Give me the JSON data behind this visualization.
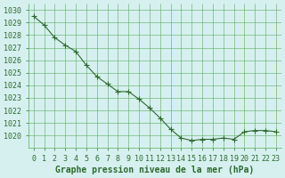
{
  "x": [
    0,
    1,
    2,
    3,
    4,
    5,
    6,
    7,
    8,
    9,
    10,
    11,
    12,
    13,
    14,
    15,
    16,
    17,
    18,
    19,
    20,
    21,
    22,
    23
  ],
  "y": [
    1029.5,
    1028.8,
    1027.8,
    1027.2,
    1026.7,
    1025.6,
    1024.7,
    1024.1,
    1023.5,
    1023.5,
    1022.9,
    1022.2,
    1021.4,
    1020.5,
    1019.8,
    1019.6,
    1019.7,
    1019.7,
    1019.8,
    1019.7,
    1020.3,
    1020.4,
    1020.4,
    1020.3
  ],
  "xlim": [
    -0.5,
    23.5
  ],
  "ylim": [
    1019.0,
    1030.5
  ],
  "yticks": [
    1020,
    1021,
    1022,
    1023,
    1024,
    1025,
    1026,
    1027,
    1028,
    1029,
    1030
  ],
  "xticks": [
    0,
    1,
    2,
    3,
    4,
    5,
    6,
    7,
    8,
    9,
    10,
    11,
    12,
    13,
    14,
    15,
    16,
    17,
    18,
    19,
    20,
    21,
    22,
    23
  ],
  "xlabel": "Graphe pression niveau de la mer (hPa)",
  "line_color": "#2d6a2d",
  "marker": "+",
  "bg_color": "#d6f0f0",
  "grid_color": "#5aab5a",
  "tick_color": "#2d6a2d",
  "label_color": "#2d6a2d",
  "xlabel_fontsize": 7,
  "tick_fontsize": 6
}
